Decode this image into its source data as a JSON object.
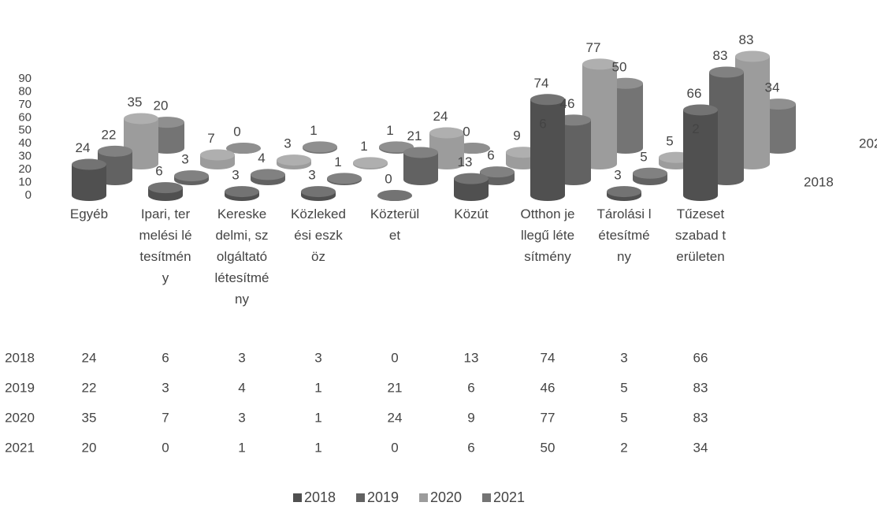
{
  "chart_data": {
    "type": "bar3d",
    "categories": [
      "Egyéb",
      "Ipari, termelési létesítmény",
      "Kereskedelmi, szolgáltató létesítmény",
      "Közlekedési eszköz",
      "Közterület",
      "Közút",
      "Otthon jellegű létesítmény",
      "Tárolási létesítmény",
      "Tűzeset szabad területen"
    ],
    "series": [
      {
        "name": "2018",
        "color": "#505050",
        "values": [
          24,
          6,
          3,
          3,
          0,
          13,
          74,
          3,
          66
        ]
      },
      {
        "name": "2019",
        "color": "#626262",
        "values": [
          22,
          3,
          4,
          1,
          21,
          6,
          46,
          5,
          83
        ]
      },
      {
        "name": "2020",
        "color": "#9c9c9c",
        "values": [
          35,
          7,
          3,
          1,
          24,
          9,
          77,
          5,
          83
        ]
      },
      {
        "name": "2021",
        "color": "#747474",
        "values": [
          20,
          0,
          1,
          1,
          0,
          6,
          50,
          2,
          34
        ]
      }
    ],
    "ylim": [
      0,
      90
    ],
    "yticks": [
      0,
      10,
      20,
      30,
      40,
      50,
      60,
      70,
      80,
      90
    ],
    "legend": "bottom",
    "data_table": true
  }
}
